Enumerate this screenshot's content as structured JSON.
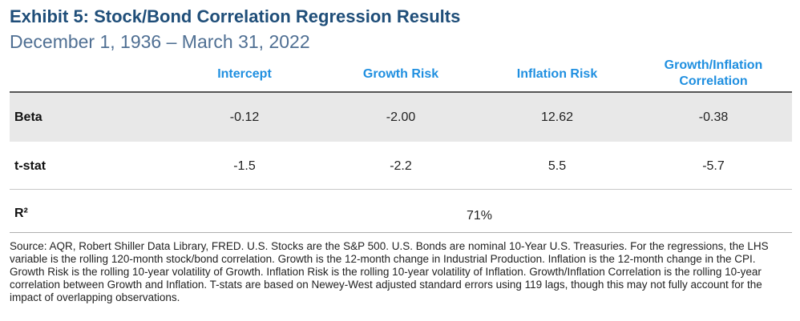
{
  "title": "Exhibit 5: Stock/Bond Correlation Regression Results",
  "subtitle": "December 1, 1936 – March 31, 2022",
  "columns": [
    "Intercept",
    "Growth Risk",
    "Inflation Risk",
    "Growth/Inflation Correlation"
  ],
  "rows": {
    "beta": {
      "label": "Beta",
      "values": [
        "-0.12",
        "-2.00",
        "12.62",
        "-0.38"
      ]
    },
    "tstat": {
      "label": "t-stat",
      "values": [
        "-1.5",
        "-2.2",
        "5.5",
        "-5.7"
      ]
    },
    "r2": {
      "label": "R²",
      "value": "71%"
    }
  },
  "footnote": "Source: AQR, Robert Shiller Data Library, FRED. U.S. Stocks are the S&P 500. U.S. Bonds are nominal 10-Year U.S. Treasuries. For the regressions, the LHS variable is the rolling 120-month stock/bond correlation. Growth is the 12-month change in Industrial Production. Inflation is the 12-month change in the CPI. Growth Risk is the rolling 10-year volatility of Growth. Inflation Risk is the rolling 10-year volatility of Inflation. Growth/Inflation Correlation is the rolling 10-year correlation between Growth and Inflation. T-stats are based on Newey-West adjusted standard errors using 119 lags, though this may not fully account for the impact of overlapping observations.",
  "colors": {
    "title": "#1f4e79",
    "subtitle": "#4f6f93",
    "header": "#1f8fe0",
    "band": "#e8e8e8"
  }
}
